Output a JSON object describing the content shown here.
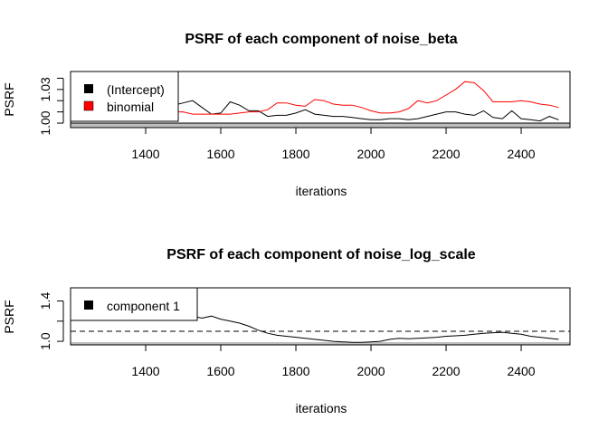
{
  "chart_data": [
    {
      "type": "line",
      "title": "PSRF of each component of noise_beta",
      "xlabel": "iterations",
      "ylabel": "PSRF",
      "xlim": [
        1200,
        2530
      ],
      "ylim": [
        0.996,
        1.046
      ],
      "xticks": [
        1400,
        1600,
        1800,
        2000,
        2200,
        2400
      ],
      "yticks": [
        1.0,
        1.01,
        1.02,
        1.03,
        1.04
      ],
      "ytick_labels": [
        "1.00",
        "",
        "",
        "1.03",
        ""
      ],
      "reference_line": 1.0,
      "reference_line_label": "",
      "legend": {
        "position": "top-left",
        "entries": [
          "(Intercept)",
          "binomial"
        ]
      },
      "x": [
        1450,
        1475,
        1500,
        1525,
        1550,
        1575,
        1600,
        1625,
        1650,
        1675,
        1700,
        1725,
        1750,
        1775,
        1800,
        1825,
        1850,
        1875,
        1900,
        1925,
        1950,
        1975,
        2000,
        2025,
        2050,
        2075,
        2100,
        2125,
        2150,
        2175,
        2200,
        2225,
        2250,
        2275,
        2300,
        2325,
        2350,
        2375,
        2400,
        2425,
        2450,
        2475,
        2500
      ],
      "series": [
        {
          "name": "(Intercept)",
          "color": "#000000",
          "values": [
            1.017,
            1.016,
            1.018,
            1.02,
            1.014,
            1.008,
            1.009,
            1.019,
            1.016,
            1.011,
            1.011,
            1.006,
            1.007,
            1.007,
            1.009,
            1.012,
            1.008,
            1.007,
            1.006,
            1.006,
            1.005,
            1.004,
            1.003,
            1.003,
            1.004,
            1.004,
            1.003,
            1.004,
            1.006,
            1.008,
            1.01,
            1.01,
            1.008,
            1.007,
            1.011,
            1.005,
            1.004,
            1.011,
            1.004,
            1.003,
            1.002,
            1.006,
            1.003
          ]
        },
        {
          "name": "binomial",
          "color": "#ff0000",
          "values": [
            1.012,
            1.01,
            1.01,
            1.008,
            1.008,
            1.008,
            1.008,
            1.008,
            1.009,
            1.01,
            1.01,
            1.012,
            1.018,
            1.018,
            1.016,
            1.015,
            1.021,
            1.02,
            1.017,
            1.016,
            1.016,
            1.014,
            1.011,
            1.009,
            1.009,
            1.01,
            1.013,
            1.02,
            1.018,
            1.02,
            1.025,
            1.03,
            1.037,
            1.036,
            1.029,
            1.019,
            1.019,
            1.019,
            1.02,
            1.019,
            1.017,
            1.016,
            1.014
          ]
        }
      ]
    },
    {
      "type": "line",
      "title": "PSRF of each component of noise_log_scale",
      "xlabel": "iterations",
      "ylabel": "PSRF",
      "xlim": [
        1200,
        2530
      ],
      "ylim": [
        0.965,
        1.53
      ],
      "xticks": [
        1400,
        1600,
        1800,
        2000,
        2200,
        2400
      ],
      "yticks": [
        1.0,
        1.2,
        1.4
      ],
      "ytick_labels": [
        "1.0",
        "",
        "1.4"
      ],
      "reference_line": 1.1,
      "reference_line_style": "dashed",
      "legend": {
        "position": "top-left",
        "entries": [
          "component 1"
        ]
      },
      "x": [
        1500,
        1525,
        1550,
        1575,
        1600,
        1625,
        1650,
        1675,
        1700,
        1725,
        1750,
        1775,
        1800,
        1825,
        1850,
        1875,
        1900,
        1925,
        1950,
        1975,
        2000,
        2025,
        2050,
        2075,
        2100,
        2125,
        2150,
        2175,
        2200,
        2225,
        2250,
        2275,
        2300,
        2325,
        2350,
        2375,
        2400,
        2425,
        2450,
        2475,
        2500
      ],
      "series": [
        {
          "name": "component 1",
          "color": "#000000",
          "values": [
            1.24,
            1.25,
            1.23,
            1.25,
            1.22,
            1.2,
            1.18,
            1.15,
            1.11,
            1.08,
            1.06,
            1.05,
            1.04,
            1.03,
            1.02,
            1.01,
            1.0,
            0.995,
            0.99,
            0.99,
            0.995,
            1.0,
            1.02,
            1.03,
            1.025,
            1.03,
            1.035,
            1.04,
            1.05,
            1.055,
            1.06,
            1.07,
            1.08,
            1.085,
            1.09,
            1.08,
            1.07,
            1.05,
            1.04,
            1.03,
            1.02
          ]
        }
      ]
    }
  ]
}
